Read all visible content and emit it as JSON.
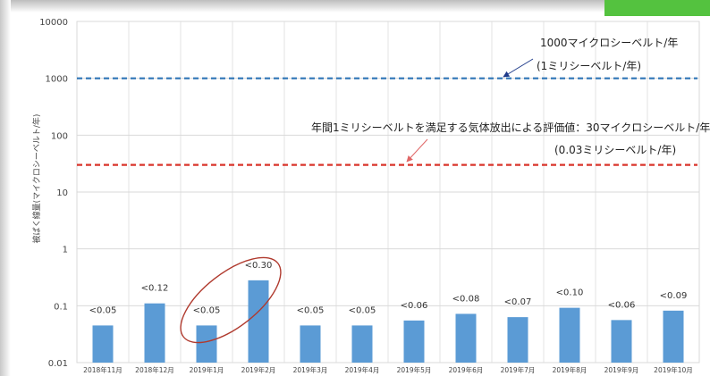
{
  "chart_data": {
    "type": "bar",
    "title": "",
    "xlabel": "",
    "ylabel": "被ばく線量(マイクロシーベルト/年)",
    "yscale": "log",
    "ylim": [
      0.01,
      10000
    ],
    "yticks": [
      {
        "value": 0.01,
        "label": "0.01"
      },
      {
        "value": 0.1,
        "label": "0.1"
      },
      {
        "value": 1,
        "label": "1"
      },
      {
        "value": 10,
        "label": "10"
      },
      {
        "value": 100,
        "label": "100"
      },
      {
        "value": 1000,
        "label": "1000"
      },
      {
        "value": 10000,
        "label": "10000"
      }
    ],
    "grid": true,
    "categories": [
      "2018年11月",
      "2018年12月",
      "2019年1月",
      "2019年2月",
      "2019年3月",
      "2019年4月",
      "2019年5月",
      "2019年6月",
      "2019年7月",
      "2019年8月",
      "2019年9月",
      "2019年10月"
    ],
    "values": [
      0.045,
      0.11,
      0.045,
      0.28,
      0.045,
      0.045,
      0.055,
      0.072,
      0.063,
      0.092,
      0.056,
      0.082
    ],
    "data_labels": [
      "<0.05",
      "<0.12",
      "<0.05",
      "<0.30",
      "<0.05",
      "<0.05",
      "<0.06",
      "<0.08",
      "<0.07",
      "<0.10",
      "<0.06",
      "<0.09"
    ],
    "bar_color": "#5b9bd5",
    "reference_lines": [
      {
        "value": 1000,
        "color": "#2e75b6",
        "style": "dashed",
        "text_line1": "1000マイクロシーベルト/年",
        "text_line2": "(1ミリシーベルト/年)"
      },
      {
        "value": 30,
        "color": "#d9342b",
        "style": "dashed",
        "text_line1": "年間1ミリシーベルトを満足する気体放出による評価値：30マイクロシーベルト/年",
        "text_line2": "(0.03ミリシーベルト/年)"
      }
    ],
    "highlight": {
      "category": "2019年2月",
      "shape": "ellipse",
      "color": "#b03a2e"
    }
  }
}
